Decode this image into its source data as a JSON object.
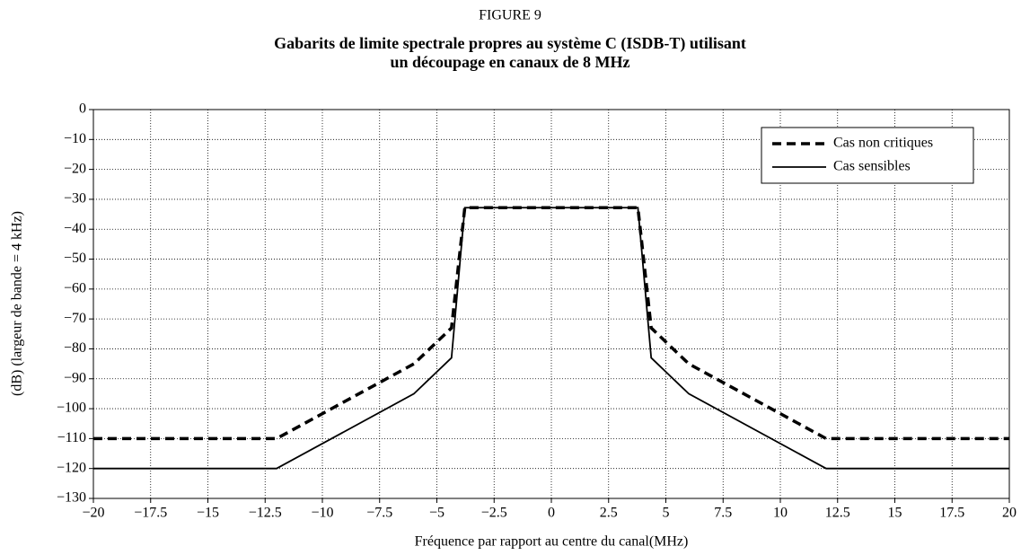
{
  "chart_data": {
    "type": "line",
    "figure_label": "FIGURE 9",
    "title": [
      "Gabarits de limite spectrale propres au système C (ISDB-T) utilisant",
      "un découpage en canaux de 8 MHz"
    ],
    "xlabel": "Fréquence par rapport au centre du canal(MHz)",
    "ylabel": "(dB)  (largeur de bande = 4 kHz)",
    "series": [
      {
        "name": "Cas non critiques",
        "color": "#000000",
        "line_style": "dashed",
        "x": [
          -20,
          -12,
          -6,
          -4.36,
          -3.78,
          3.78,
          4.36,
          6,
          12,
          20
        ],
        "values": [
          -110,
          -110,
          -85,
          -73,
          -32.8,
          -32.8,
          -73,
          -85,
          -110,
          -110
        ]
      },
      {
        "name": "Cas sensibles",
        "color": "#000000",
        "line_style": "solid",
        "x": [
          -20,
          -12,
          -6,
          -4.36,
          -3.78,
          3.78,
          4.36,
          6,
          12,
          20
        ],
        "values": [
          -120,
          -120,
          -95,
          -83,
          -32.8,
          -32.8,
          -83,
          -95,
          -120,
          -120
        ]
      }
    ],
    "xlim": [
      -20,
      20
    ],
    "xticks": [
      {
        "value": -20,
        "label": "−20"
      },
      {
        "value": -17.5,
        "label": "−17.5"
      },
      {
        "value": -15,
        "label": "−15"
      },
      {
        "value": -12.5,
        "label": "−12.5"
      },
      {
        "value": -10,
        "label": "−10"
      },
      {
        "value": -7.5,
        "label": "−7.5"
      },
      {
        "value": -5,
        "label": "−5"
      },
      {
        "value": -2.5,
        "label": "−2.5"
      },
      0,
      2.5,
      5,
      7.5,
      10,
      12.5,
      15,
      17.5,
      20
    ],
    "ylim": [
      -130,
      0
    ],
    "yticks": [
      0,
      {
        "value": -10,
        "label": "−10"
      },
      {
        "value": -20,
        "label": "−20"
      },
      {
        "value": -30,
        "label": "−30"
      },
      {
        "value": -40,
        "label": "−40"
      },
      {
        "value": -50,
        "label": "−50"
      },
      {
        "value": -60,
        "label": "−60"
      },
      {
        "value": -70,
        "label": "−70"
      },
      {
        "value": -80,
        "label": "−80"
      },
      {
        "value": -90,
        "label": "−90"
      },
      {
        "value": -100,
        "label": "−100"
      },
      {
        "value": -110,
        "label": "−110"
      },
      {
        "value": -120,
        "label": "−120"
      },
      {
        "value": -130,
        "label": "−130"
      }
    ],
    "grid": true,
    "legend": "upper right"
  }
}
